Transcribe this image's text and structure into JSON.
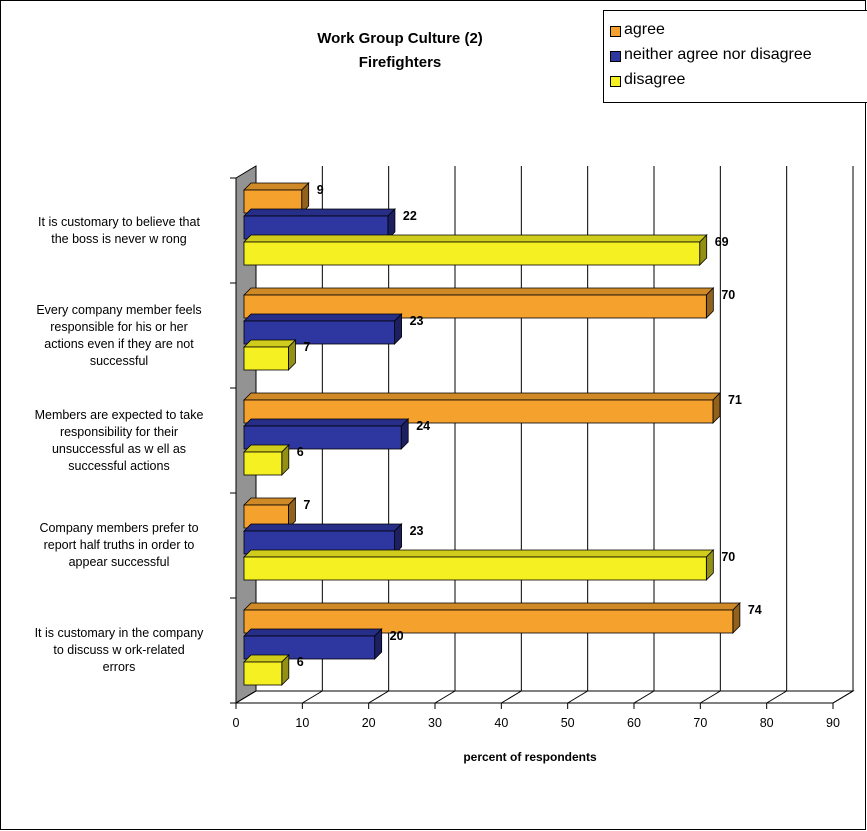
{
  "chart_data": {
    "type": "bar",
    "orientation": "horizontal",
    "title": "Work Group Culture (2)",
    "subtitle": "Firefighters",
    "xlabel": "percent of respondents",
    "ylabel": "",
    "xlim": [
      0,
      90
    ],
    "x_ticks": [
      "0",
      "10",
      "20",
      "30",
      "40",
      "50",
      "60",
      "70",
      "80",
      "90"
    ],
    "grid": true,
    "legend_position": "top-right",
    "categories": [
      [
        "It is customary to believe that",
        "the boss is never w rong"
      ],
      [
        "Every company member feels",
        "responsible for his or her",
        "actions even if they are not",
        "successful"
      ],
      [
        "Members are expected to take",
        "responsibility for their",
        "unsuccessful as w ell as",
        "successful actions"
      ],
      [
        "Company members prefer to",
        "report half truths in order to",
        "appear successful"
      ],
      [
        "It is customary in the company",
        "to discuss w ork-related",
        "errors"
      ]
    ],
    "series": [
      {
        "name": "agree",
        "color": "#f4a12e",
        "values": [
          9,
          70,
          71,
          7,
          74
        ]
      },
      {
        "name": "neither agree nor disagree",
        "color": "#2e36a0",
        "values": [
          22,
          23,
          24,
          23,
          20
        ]
      },
      {
        "name": "disagree",
        "color": "#f5f021",
        "values": [
          69,
          7,
          6,
          70,
          6
        ]
      }
    ]
  }
}
